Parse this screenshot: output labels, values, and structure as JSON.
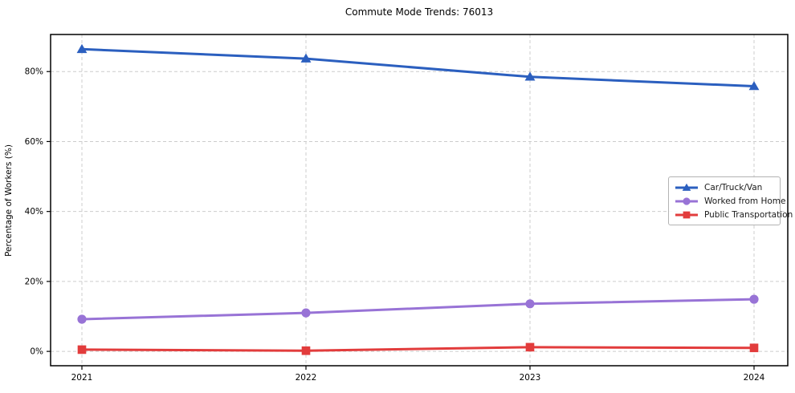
{
  "chart_data": {
    "type": "line",
    "title": "Commute Mode Trends: 76013",
    "xlabel": "",
    "ylabel": "Percentage of Workers (%)",
    "x": [
      2021,
      2022,
      2023,
      2024
    ],
    "x_tick_labels": [
      "2021",
      "2022",
      "2023",
      "2024"
    ],
    "y_ticks": [
      0,
      20,
      40,
      60,
      80
    ],
    "y_tick_labels": [
      "0%",
      "20%",
      "40%",
      "60%",
      "80%"
    ],
    "ylim": [
      -4.1,
      90.6
    ],
    "grid": "dashed-both-axes",
    "grid_color": "#cccccc",
    "legend_position": "center-right",
    "series": [
      {
        "name": "Car/Truck/Van",
        "marker": "triangle",
        "color": "#2b5fbf",
        "values": [
          86.4,
          83.7,
          78.5,
          75.8
        ]
      },
      {
        "name": "Worked from Home",
        "marker": "circle",
        "color": "#9873d6",
        "values": [
          9.2,
          11.0,
          13.6,
          14.9
        ]
      },
      {
        "name": "Public Transportation",
        "marker": "square",
        "color": "#e23c3c",
        "values": [
          0.5,
          0.2,
          1.2,
          1.0
        ]
      }
    ]
  }
}
